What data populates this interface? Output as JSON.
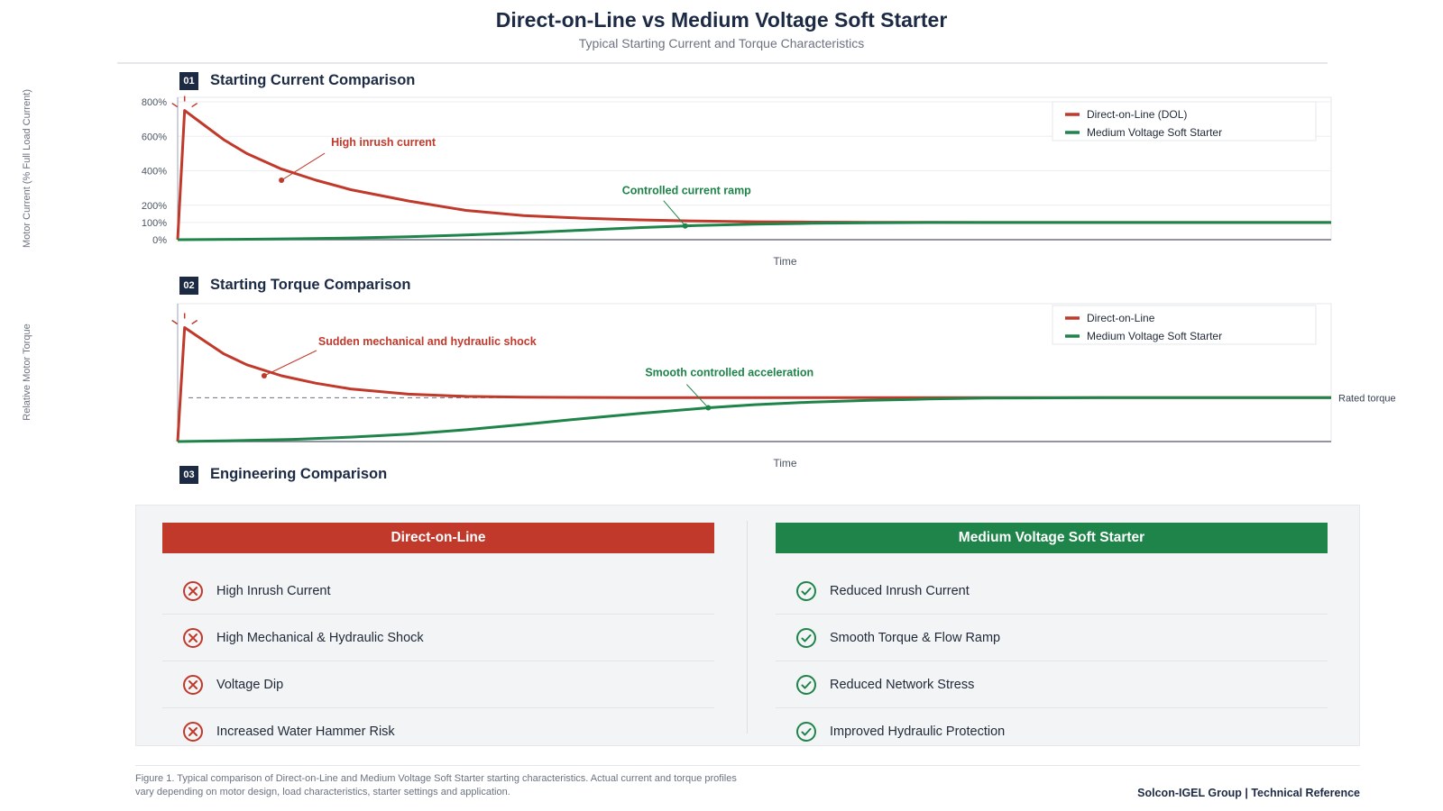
{
  "header": {
    "title": "Direct-on-Line vs Medium Voltage Soft Starter",
    "subtitle": "Typical Starting Current and Torque Characteristics"
  },
  "sections": [
    {
      "number": "01",
      "title": "Starting Current Comparison"
    },
    {
      "number": "02",
      "title": "Starting Torque Comparison"
    },
    {
      "number": "03",
      "title": "Engineering Comparison"
    }
  ],
  "colors": {
    "dol": "#c0392b",
    "soft_starter": "#1e8449",
    "navy": "#1c2a44"
  },
  "chart_data": [
    {
      "type": "line",
      "title": "Starting Current Comparison",
      "ylabel": "Motor Current (% Full Load Current)",
      "xlabel": "Time",
      "yticks": [
        "0%",
        "100%",
        "200%",
        "400%",
        "600%",
        "800%"
      ],
      "ylim": [
        0,
        800
      ],
      "xlim": [
        0,
        100
      ],
      "legend_position": "top-right",
      "series": [
        {
          "name": "Direct-on-Line (DOL)",
          "color": "#c0392b",
          "x": [
            0,
            0.6,
            2,
            4,
            6,
            9,
            12,
            15,
            20,
            25,
            30,
            35,
            40,
            45,
            50,
            55,
            60,
            70,
            80,
            90,
            100
          ],
          "values": [
            0,
            750,
            680,
            580,
            500,
            410,
            345,
            290,
            225,
            170,
            140,
            125,
            115,
            108,
            104,
            102,
            101,
            100,
            100,
            100,
            100
          ]
        },
        {
          "name": "Medium Voltage Soft Starter",
          "color": "#1e8449",
          "x": [
            0,
            5,
            10,
            15,
            20,
            25,
            30,
            35,
            40,
            45,
            50,
            55,
            60,
            65,
            70,
            80,
            90,
            100
          ],
          "values": [
            0,
            2,
            5,
            10,
            17,
            27,
            40,
            55,
            70,
            82,
            90,
            95,
            98,
            100,
            100,
            100,
            100,
            100
          ]
        }
      ],
      "annotations": [
        {
          "text": "High inrush current",
          "x": 9,
          "y": 345,
          "color": "#c0392b"
        },
        {
          "text": "Controlled current ramp",
          "x": 44,
          "y": 80,
          "color": "#1e8449"
        }
      ]
    },
    {
      "type": "line",
      "title": "Starting Torque Comparison",
      "ylabel": "Relative Motor Torque",
      "xlabel": "Time",
      "ylim": [
        0,
        3
      ],
      "xlim": [
        0,
        100
      ],
      "legend_position": "top-right",
      "reference_line": {
        "label": "Rated torque",
        "y": 1
      },
      "series": [
        {
          "name": "Direct-on-Line",
          "color": "#c0392b",
          "x": [
            0,
            0.6,
            2,
            4,
            6,
            9,
            12,
            15,
            20,
            25,
            30,
            40,
            50,
            60,
            70,
            80,
            100
          ],
          "values": [
            0,
            2.6,
            2.35,
            2.0,
            1.75,
            1.5,
            1.33,
            1.2,
            1.08,
            1.03,
            1.01,
            1.0,
            1.0,
            1.0,
            1.0,
            1.0,
            1.0
          ]
        },
        {
          "name": "Medium Voltage Soft Starter",
          "color": "#1e8449",
          "x": [
            0,
            5,
            10,
            15,
            20,
            25,
            30,
            35,
            40,
            46,
            50,
            55,
            60,
            65,
            70,
            80,
            90,
            100
          ],
          "values": [
            0,
            0.02,
            0.05,
            0.1,
            0.17,
            0.27,
            0.39,
            0.52,
            0.64,
            0.77,
            0.84,
            0.9,
            0.94,
            0.97,
            0.99,
            1.0,
            1.0,
            1.0
          ]
        }
      ],
      "annotations": [
        {
          "text": "Sudden mechanical and hydraulic shock",
          "x": 7.5,
          "y": 1.5,
          "color": "#c0392b"
        },
        {
          "text": "Smooth controlled acceleration",
          "x": 46,
          "y": 0.77,
          "color": "#1e8449"
        }
      ]
    }
  ],
  "comparison": {
    "dol": {
      "header": "Direct-on-Line",
      "icon": "x-circle-icon",
      "items": [
        "High Inrush Current",
        "High Mechanical & Hydraulic Shock",
        "Voltage Dip",
        "Increased Water Hammer Risk"
      ]
    },
    "soft": {
      "header": "Medium Voltage Soft Starter",
      "icon": "check-circle-icon",
      "items": [
        "Reduced Inrush Current",
        "Smooth Torque & Flow Ramp",
        "Reduced Network Stress",
        "Improved Hydraulic Protection"
      ]
    }
  },
  "footer": {
    "caption": "Figure 1. Typical comparison of Direct-on-Line and Medium Voltage Soft Starter starting characteristics. Actual current and torque profiles vary depending on motor design, load characteristics, starter settings and application.",
    "attribution": "Solcon-IGEL Group | Technical Reference"
  }
}
